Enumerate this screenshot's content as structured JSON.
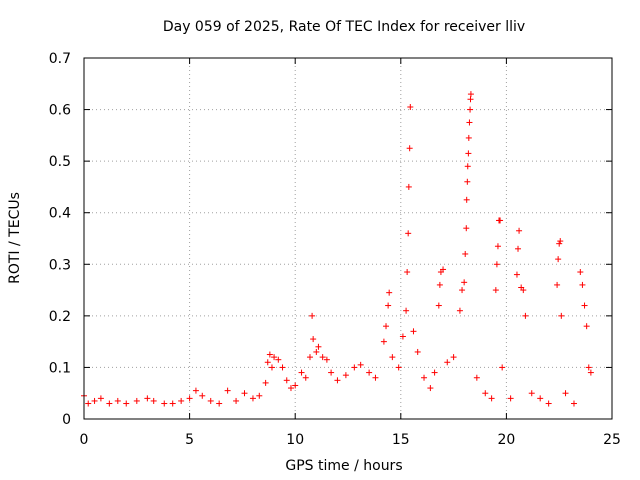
{
  "chart_data": {
    "type": "scatter",
    "title": "Day 059 of 2025, Rate Of TEC Index for receiver lliv",
    "xlabel": "GPS time / hours",
    "ylabel": "ROTI / TECUs",
    "xlim": [
      0,
      25
    ],
    "ylim": [
      0,
      0.7
    ],
    "xticks": [
      "0",
      "5",
      "10",
      "15",
      "20",
      "25"
    ],
    "yticks": [
      "0",
      "0.1",
      "0.2",
      "0.3",
      "0.4",
      "0.5",
      "0.6",
      "0.7"
    ],
    "grid": true,
    "marker": "+",
    "color": "#ff0000",
    "series": [
      {
        "name": "ROTI",
        "points": [
          [
            0.0,
            0.045
          ],
          [
            0.2,
            0.03
          ],
          [
            0.5,
            0.035
          ],
          [
            0.8,
            0.04
          ],
          [
            1.2,
            0.03
          ],
          [
            1.6,
            0.035
          ],
          [
            2.0,
            0.03
          ],
          [
            2.5,
            0.035
          ],
          [
            3.0,
            0.04
          ],
          [
            3.3,
            0.035
          ],
          [
            3.8,
            0.03
          ],
          [
            4.2,
            0.03
          ],
          [
            4.6,
            0.035
          ],
          [
            5.0,
            0.04
          ],
          [
            5.3,
            0.055
          ],
          [
            5.6,
            0.045
          ],
          [
            6.0,
            0.035
          ],
          [
            6.4,
            0.03
          ],
          [
            6.8,
            0.055
          ],
          [
            7.2,
            0.035
          ],
          [
            7.6,
            0.05
          ],
          [
            8.0,
            0.04
          ],
          [
            8.3,
            0.045
          ],
          [
            8.6,
            0.07
          ],
          [
            8.7,
            0.11
          ],
          [
            8.8,
            0.125
          ],
          [
            8.9,
            0.1
          ],
          [
            9.0,
            0.12
          ],
          [
            9.2,
            0.115
          ],
          [
            9.4,
            0.1
          ],
          [
            9.6,
            0.075
          ],
          [
            9.8,
            0.06
          ],
          [
            10.0,
            0.065
          ],
          [
            10.3,
            0.09
          ],
          [
            10.5,
            0.08
          ],
          [
            10.7,
            0.12
          ],
          [
            10.8,
            0.2
          ],
          [
            10.85,
            0.155
          ],
          [
            11.0,
            0.13
          ],
          [
            11.1,
            0.14
          ],
          [
            11.3,
            0.12
          ],
          [
            11.5,
            0.115
          ],
          [
            11.7,
            0.09
          ],
          [
            12.0,
            0.075
          ],
          [
            12.4,
            0.085
          ],
          [
            12.8,
            0.1
          ],
          [
            13.1,
            0.105
          ],
          [
            13.5,
            0.09
          ],
          [
            13.8,
            0.08
          ],
          [
            14.2,
            0.15
          ],
          [
            14.3,
            0.18
          ],
          [
            14.4,
            0.22
          ],
          [
            14.45,
            0.245
          ],
          [
            14.6,
            0.12
          ],
          [
            14.9,
            0.1
          ],
          [
            15.1,
            0.16
          ],
          [
            15.25,
            0.21
          ],
          [
            15.3,
            0.285
          ],
          [
            15.35,
            0.36
          ],
          [
            15.38,
            0.45
          ],
          [
            15.42,
            0.525
          ],
          [
            15.45,
            0.605
          ],
          [
            15.6,
            0.17
          ],
          [
            15.8,
            0.13
          ],
          [
            16.1,
            0.08
          ],
          [
            16.4,
            0.06
          ],
          [
            16.6,
            0.09
          ],
          [
            16.8,
            0.22
          ],
          [
            16.85,
            0.26
          ],
          [
            16.9,
            0.285
          ],
          [
            17.0,
            0.29
          ],
          [
            17.2,
            0.11
          ],
          [
            17.5,
            0.12
          ],
          [
            17.8,
            0.21
          ],
          [
            17.9,
            0.25
          ],
          [
            18.0,
            0.265
          ],
          [
            18.05,
            0.32
          ],
          [
            18.1,
            0.37
          ],
          [
            18.12,
            0.425
          ],
          [
            18.15,
            0.46
          ],
          [
            18.17,
            0.49
          ],
          [
            18.2,
            0.515
          ],
          [
            18.22,
            0.545
          ],
          [
            18.25,
            0.575
          ],
          [
            18.28,
            0.6
          ],
          [
            18.3,
            0.62
          ],
          [
            18.32,
            0.63
          ],
          [
            18.6,
            0.08
          ],
          [
            19.0,
            0.05
          ],
          [
            19.3,
            0.04
          ],
          [
            19.5,
            0.25
          ],
          [
            19.55,
            0.3
          ],
          [
            19.6,
            0.335
          ],
          [
            19.65,
            0.385
          ],
          [
            19.7,
            0.385
          ],
          [
            19.8,
            0.1
          ],
          [
            20.2,
            0.04
          ],
          [
            20.5,
            0.28
          ],
          [
            20.55,
            0.33
          ],
          [
            20.6,
            0.365
          ],
          [
            20.7,
            0.255
          ],
          [
            20.8,
            0.25
          ],
          [
            20.9,
            0.2
          ],
          [
            21.2,
            0.05
          ],
          [
            21.6,
            0.04
          ],
          [
            22.0,
            0.03
          ],
          [
            22.4,
            0.26
          ],
          [
            22.45,
            0.31
          ],
          [
            22.5,
            0.34
          ],
          [
            22.55,
            0.345
          ],
          [
            22.6,
            0.2
          ],
          [
            22.8,
            0.05
          ],
          [
            23.2,
            0.03
          ],
          [
            23.5,
            0.285
          ],
          [
            23.6,
            0.26
          ],
          [
            23.7,
            0.22
          ],
          [
            23.8,
            0.18
          ],
          [
            23.9,
            0.1
          ],
          [
            24.0,
            0.09
          ]
        ]
      }
    ]
  }
}
